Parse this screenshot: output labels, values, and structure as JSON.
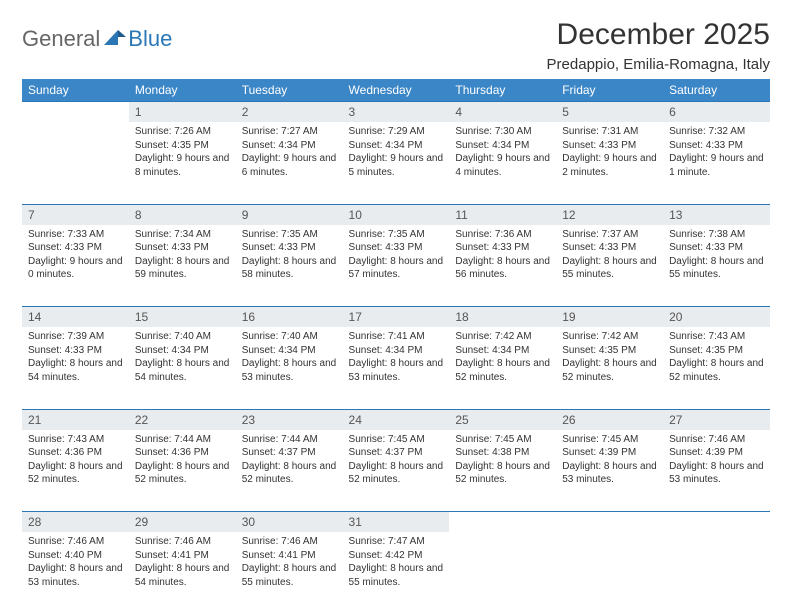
{
  "logo": {
    "general": "General",
    "blue": "Blue"
  },
  "title": "December 2025",
  "location": "Predappio, Emilia-Romagna, Italy",
  "columns": [
    "Sunday",
    "Monday",
    "Tuesday",
    "Wednesday",
    "Thursday",
    "Friday",
    "Saturday"
  ],
  "colors": {
    "header_bg": "#3b86c6",
    "rule": "#2b77b5",
    "daynum_bg": "#e9ecef",
    "logo_gray": "#666666",
    "logo_blue": "#2b77b5"
  },
  "weeks": [
    {
      "nums": [
        "",
        "1",
        "2",
        "3",
        "4",
        "5",
        "6"
      ],
      "cells": [
        "",
        "Sunrise: 7:26 AM\nSunset: 4:35 PM\nDaylight: 9 hours and 8 minutes.",
        "Sunrise: 7:27 AM\nSunset: 4:34 PM\nDaylight: 9 hours and 6 minutes.",
        "Sunrise: 7:29 AM\nSunset: 4:34 PM\nDaylight: 9 hours and 5 minutes.",
        "Sunrise: 7:30 AM\nSunset: 4:34 PM\nDaylight: 9 hours and 4 minutes.",
        "Sunrise: 7:31 AM\nSunset: 4:33 PM\nDaylight: 9 hours and 2 minutes.",
        "Sunrise: 7:32 AM\nSunset: 4:33 PM\nDaylight: 9 hours and 1 minute."
      ]
    },
    {
      "nums": [
        "7",
        "8",
        "9",
        "10",
        "11",
        "12",
        "13"
      ],
      "cells": [
        "Sunrise: 7:33 AM\nSunset: 4:33 PM\nDaylight: 9 hours and 0 minutes.",
        "Sunrise: 7:34 AM\nSunset: 4:33 PM\nDaylight: 8 hours and 59 minutes.",
        "Sunrise: 7:35 AM\nSunset: 4:33 PM\nDaylight: 8 hours and 58 minutes.",
        "Sunrise: 7:35 AM\nSunset: 4:33 PM\nDaylight: 8 hours and 57 minutes.",
        "Sunrise: 7:36 AM\nSunset: 4:33 PM\nDaylight: 8 hours and 56 minutes.",
        "Sunrise: 7:37 AM\nSunset: 4:33 PM\nDaylight: 8 hours and 55 minutes.",
        "Sunrise: 7:38 AM\nSunset: 4:33 PM\nDaylight: 8 hours and 55 minutes."
      ]
    },
    {
      "nums": [
        "14",
        "15",
        "16",
        "17",
        "18",
        "19",
        "20"
      ],
      "cells": [
        "Sunrise: 7:39 AM\nSunset: 4:33 PM\nDaylight: 8 hours and 54 minutes.",
        "Sunrise: 7:40 AM\nSunset: 4:34 PM\nDaylight: 8 hours and 54 minutes.",
        "Sunrise: 7:40 AM\nSunset: 4:34 PM\nDaylight: 8 hours and 53 minutes.",
        "Sunrise: 7:41 AM\nSunset: 4:34 PM\nDaylight: 8 hours and 53 minutes.",
        "Sunrise: 7:42 AM\nSunset: 4:34 PM\nDaylight: 8 hours and 52 minutes.",
        "Sunrise: 7:42 AM\nSunset: 4:35 PM\nDaylight: 8 hours and 52 minutes.",
        "Sunrise: 7:43 AM\nSunset: 4:35 PM\nDaylight: 8 hours and 52 minutes."
      ]
    },
    {
      "nums": [
        "21",
        "22",
        "23",
        "24",
        "25",
        "26",
        "27"
      ],
      "cells": [
        "Sunrise: 7:43 AM\nSunset: 4:36 PM\nDaylight: 8 hours and 52 minutes.",
        "Sunrise: 7:44 AM\nSunset: 4:36 PM\nDaylight: 8 hours and 52 minutes.",
        "Sunrise: 7:44 AM\nSunset: 4:37 PM\nDaylight: 8 hours and 52 minutes.",
        "Sunrise: 7:45 AM\nSunset: 4:37 PM\nDaylight: 8 hours and 52 minutes.",
        "Sunrise: 7:45 AM\nSunset: 4:38 PM\nDaylight: 8 hours and 52 minutes.",
        "Sunrise: 7:45 AM\nSunset: 4:39 PM\nDaylight: 8 hours and 53 minutes.",
        "Sunrise: 7:46 AM\nSunset: 4:39 PM\nDaylight: 8 hours and 53 minutes."
      ]
    },
    {
      "nums": [
        "28",
        "29",
        "30",
        "31",
        "",
        "",
        ""
      ],
      "cells": [
        "Sunrise: 7:46 AM\nSunset: 4:40 PM\nDaylight: 8 hours and 53 minutes.",
        "Sunrise: 7:46 AM\nSunset: 4:41 PM\nDaylight: 8 hours and 54 minutes.",
        "Sunrise: 7:46 AM\nSunset: 4:41 PM\nDaylight: 8 hours and 55 minutes.",
        "Sunrise: 7:47 AM\nSunset: 4:42 PM\nDaylight: 8 hours and 55 minutes.",
        "",
        "",
        ""
      ]
    }
  ]
}
